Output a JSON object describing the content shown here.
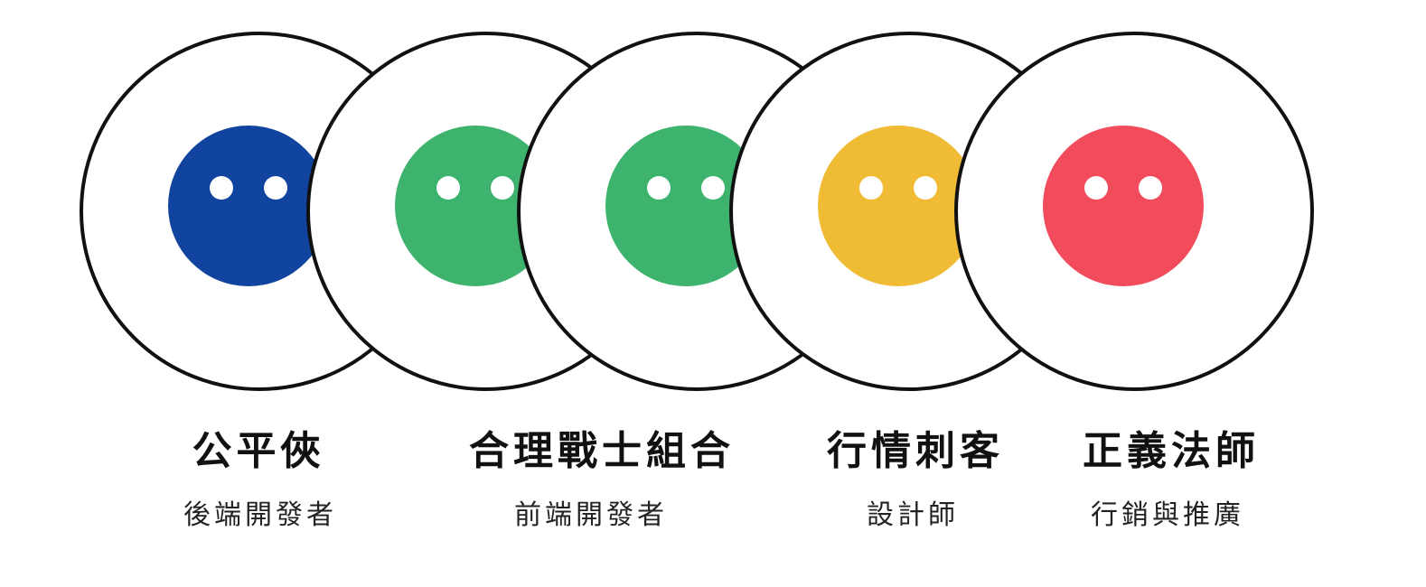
{
  "members": [
    {
      "title": "公平俠",
      "role": "後端開發者",
      "color": "#11449f",
      "icon": "face-icon"
    },
    {
      "title": "合理戰士組合",
      "role": "前端開發者",
      "color": "#3db36d",
      "icon": "face-icon"
    },
    {
      "title": "",
      "role": "",
      "color": "#3db36d",
      "icon": "face-icon"
    },
    {
      "title": "行情刺客",
      "role": "設計師",
      "color": "#f0bb35",
      "icon": "face-icon"
    },
    {
      "title": "正義法師",
      "role": "行銷與推廣",
      "color": "#f24b5c",
      "icon": "face-icon"
    }
  ]
}
